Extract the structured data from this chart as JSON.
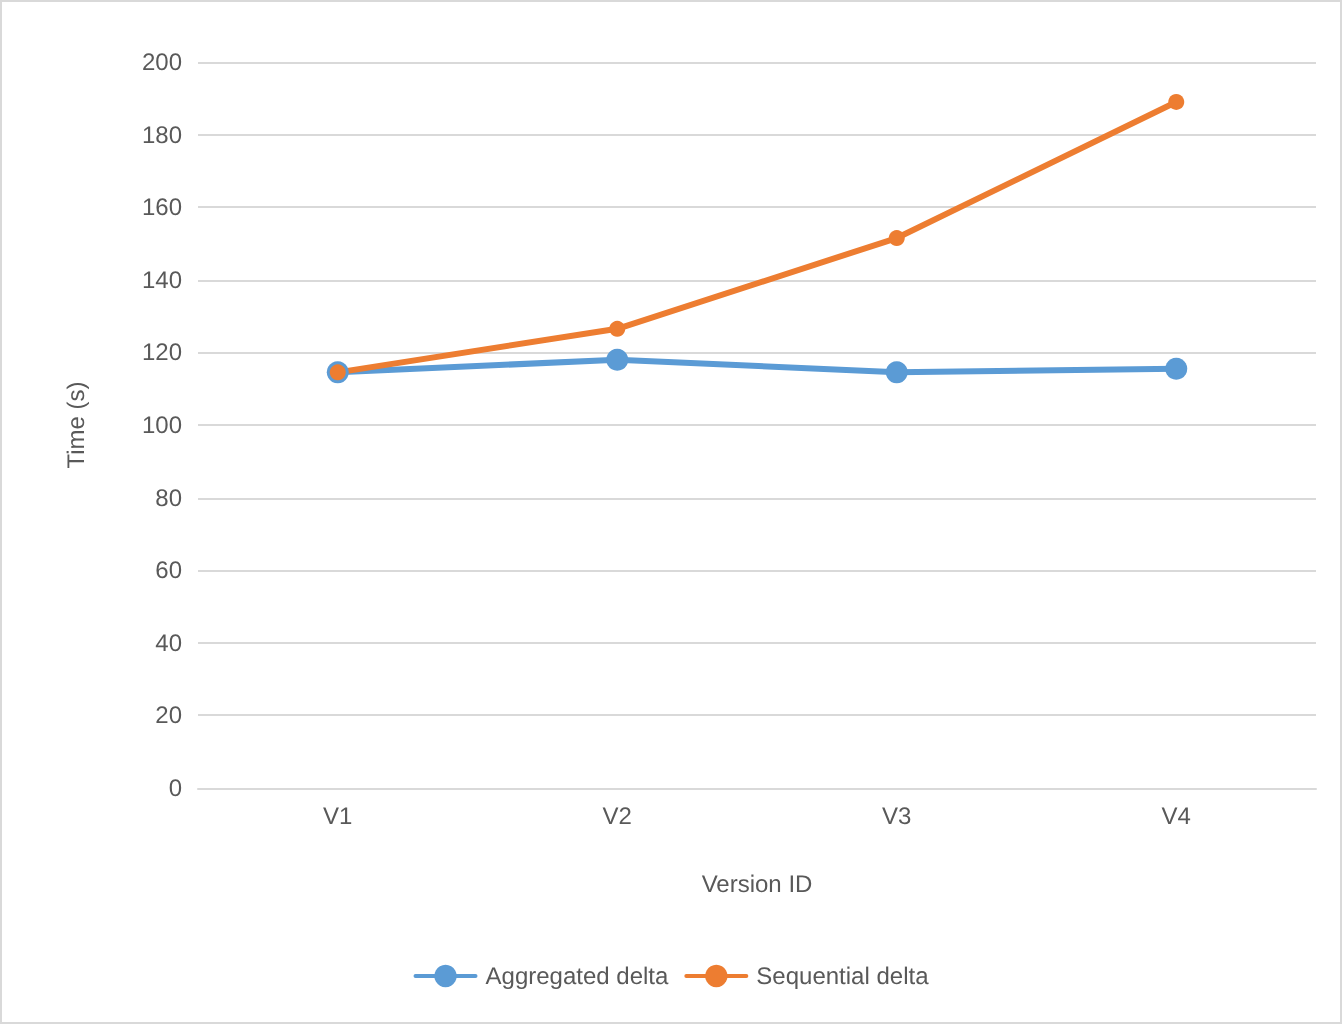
{
  "chart_data": {
    "type": "line",
    "xlabel": "Version ID",
    "ylabel": "Time (s)",
    "categories": [
      "V1",
      "V2",
      "V3",
      "V4"
    ],
    "series": [
      {
        "name": "Aggregated delta",
        "color": "#5b9bd5",
        "values": [
          114.5,
          118,
          114.5,
          115.5
        ]
      },
      {
        "name": "Sequential delta",
        "color": "#ed7d31",
        "values": [
          114.5,
          126.5,
          151.5,
          189
        ]
      }
    ],
    "ylim": [
      0,
      200
    ],
    "yticks": [
      0,
      20,
      40,
      60,
      80,
      100,
      120,
      140,
      160,
      180,
      200
    ],
    "grid": "y",
    "legend": "bottom",
    "marker": "circle",
    "line_style": "solid"
  }
}
